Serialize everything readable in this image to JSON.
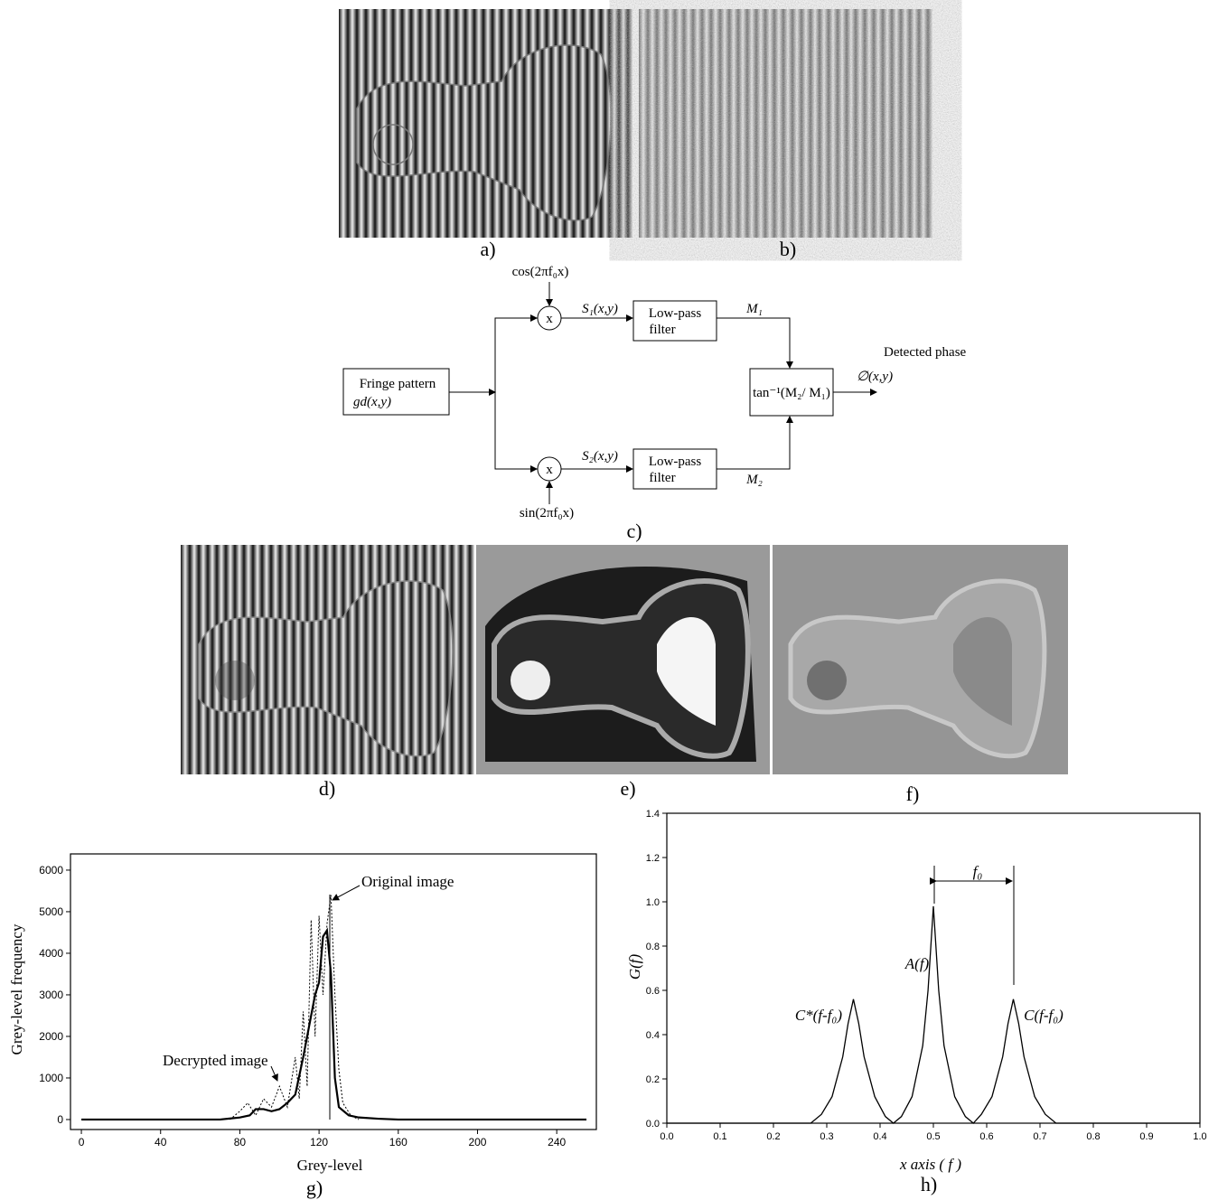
{
  "panels": {
    "a": "a)",
    "b": "b)",
    "c": "c)",
    "d": "d)",
    "e": "e)",
    "f": "f)",
    "g": "g)",
    "h": "h)"
  },
  "diagram": {
    "input_line1": "Fringe pattern",
    "input_line2": "gd(x,y)",
    "cos": "cos(2πf₀x)",
    "sin": "sin(2πf₀x)",
    "mult1": "x",
    "mult2": "x",
    "s1": "S₁(x,y)",
    "s2": "S₂(x,y)",
    "filter1_line1": "Low-pass",
    "filter1_line2": "filter",
    "filter2_line1": "Low-pass",
    "filter2_line2": "filter",
    "m1": "M₁",
    "m2": "M₂",
    "arctan": "tan⁻¹(M₂/ M₁)",
    "output_line1": "Detected phase",
    "output_line2": "∅(x,y)"
  },
  "chart_data": [
    {
      "type": "line",
      "x_label": "Grey-level",
      "y_label": "Grey-level frequency",
      "xlim": [
        -5.5,
        260
      ],
      "ylim": [
        -240,
        6390
      ],
      "xticks": [
        0,
        40,
        80,
        120,
        160,
        200,
        240
      ],
      "yticks": [
        0,
        1000,
        2000,
        3000,
        4000,
        5000,
        6000
      ],
      "series": [
        {
          "name": "Decrypted image",
          "color": "#000000",
          "linestyle": "solid",
          "x": [
            0,
            70,
            80,
            85,
            88,
            92,
            96,
            100,
            104,
            108,
            112,
            116,
            118,
            120,
            122,
            124,
            126,
            128,
            130,
            135,
            140,
            150,
            160,
            255
          ],
          "values": [
            0,
            0,
            50,
            100,
            250,
            250,
            200,
            250,
            400,
            600,
            1500,
            2500,
            3000,
            3300,
            4400,
            4550,
            3500,
            1000,
            300,
            100,
            50,
            20,
            0,
            0
          ]
        },
        {
          "name": "Original image",
          "color": "#000000",
          "linestyle": "dotted",
          "x": [
            75,
            80,
            84,
            88,
            92,
            96,
            100,
            104,
            108,
            110,
            112,
            114,
            116,
            118,
            120,
            122,
            124,
            126,
            128,
            130,
            132,
            136,
            140
          ],
          "values": [
            0,
            200,
            400,
            100,
            500,
            300,
            800,
            300,
            1500,
            500,
            2600,
            800,
            4800,
            2000,
            4900,
            3000,
            4700,
            5400,
            3000,
            1200,
            400,
            100,
            0
          ]
        }
      ]
    },
    {
      "type": "line",
      "x_label": "x axis ( f )",
      "y_label": "G(f)",
      "xlim": [
        0,
        1
      ],
      "ylim": [
        0,
        1.4
      ],
      "xticks": [
        {
          "value": 0,
          "label": "0.0"
        },
        0.1,
        0.2,
        0.3,
        0.4,
        0.5,
        0.6,
        0.7,
        0.8,
        0.9,
        {
          "value": 1,
          "label": "1.0"
        }
      ],
      "yticks": [
        {
          "value": 0,
          "label": "0.0"
        },
        0.2,
        0.4,
        0.6,
        0.8,
        {
          "value": 1,
          "label": "1.0"
        },
        1.2,
        1.4
      ],
      "color": "#000000",
      "x": [
        0,
        0.27,
        0.29,
        0.31,
        0.33,
        0.34,
        0.35,
        0.36,
        0.37,
        0.39,
        0.41,
        0.425,
        0.44,
        0.46,
        0.48,
        0.49,
        0.5,
        0.51,
        0.52,
        0.54,
        0.56,
        0.575,
        0.59,
        0.61,
        0.63,
        0.64,
        0.65,
        0.66,
        0.67,
        0.69,
        0.71,
        0.73,
        1
      ],
      "values": [
        0,
        0,
        0.04,
        0.12,
        0.3,
        0.45,
        0.56,
        0.45,
        0.3,
        0.12,
        0.03,
        0,
        0.03,
        0.12,
        0.35,
        0.6,
        0.98,
        0.6,
        0.35,
        0.12,
        0.03,
        0,
        0.04,
        0.12,
        0.3,
        0.45,
        0.56,
        0.45,
        0.3,
        0.12,
        0.04,
        0,
        0
      ],
      "annotations": [
        "C*(f-f₀)",
        "A(f)",
        "C(f-f₀)",
        "f₀"
      ]
    }
  ]
}
